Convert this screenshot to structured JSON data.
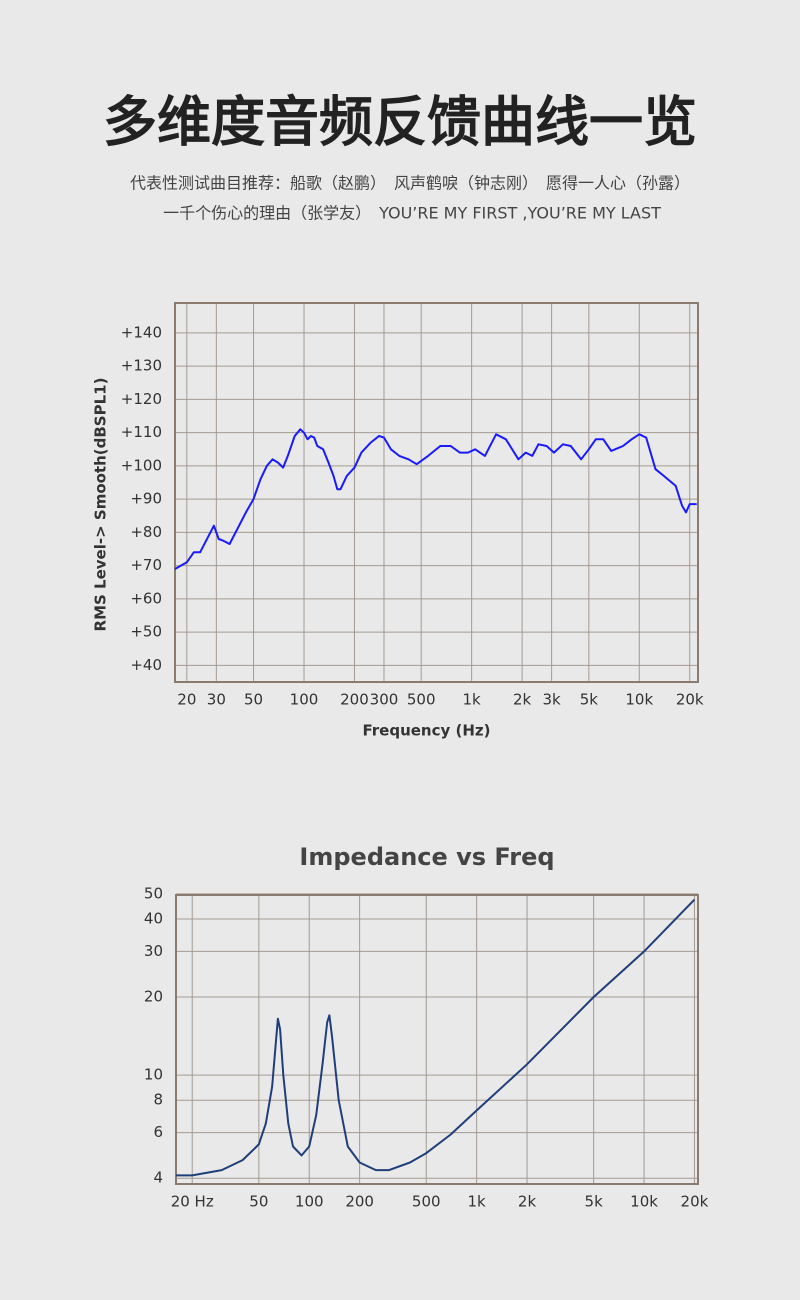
{
  "header": {
    "title": "多维度音频反馈曲线一览",
    "lines": [
      "代表性测试曲目推荐：船歌（赵鹏）　风声鹤唳（钟志刚）　愿得一人心（孙露）",
      "一千个伤心的理由（张学友）　YOU’RE MY FIRST ,YOU’RE MY LAST"
    ]
  },
  "chart_data": [
    {
      "type": "line",
      "xlabel": "Frequency (Hz)",
      "ylabel": "RMS Level-> Smooth(dBSPL1)",
      "xscale": "log",
      "yscale": "linear",
      "grid": true,
      "color": "#1a1aff",
      "xlim": [
        17,
        22400
      ],
      "ylim": [
        35,
        149
      ],
      "xticks": [
        20,
        30,
        50,
        100,
        200,
        300,
        500,
        {
          "value": 1000,
          "label": "1k"
        },
        {
          "value": 2000,
          "label": "2k"
        },
        {
          "value": 3000,
          "label": "3k"
        },
        {
          "value": 5000,
          "label": "5k"
        },
        {
          "value": 10000,
          "label": "10k"
        },
        {
          "value": 20000,
          "label": "20k"
        }
      ],
      "yticks": [
        {
          "value": 40,
          "label": "+40"
        },
        {
          "value": 50,
          "label": "+50"
        },
        {
          "value": 60,
          "label": "+60"
        },
        {
          "value": 70,
          "label": "+70"
        },
        {
          "value": 80,
          "label": "+80"
        },
        {
          "value": 90,
          "label": "+90"
        },
        {
          "value": 100,
          "label": "+100"
        },
        {
          "value": 110,
          "label": "+110"
        },
        {
          "value": 120,
          "label": "+120"
        },
        {
          "value": 130,
          "label": "+130"
        },
        {
          "value": 140,
          "label": "+140"
        }
      ],
      "x": [
        17,
        20,
        22,
        24,
        27,
        29,
        31,
        33,
        36,
        40,
        45,
        50,
        55,
        60,
        65,
        70,
        75,
        80,
        88,
        95,
        100,
        105,
        110,
        115,
        120,
        130,
        140,
        150,
        158,
        165,
        180,
        200,
        220,
        250,
        280,
        300,
        330,
        370,
        420,
        470,
        550,
        650,
        750,
        850,
        950,
        1050,
        1200,
        1400,
        1600,
        1900,
        2100,
        2300,
        2500,
        2800,
        3100,
        3500,
        3900,
        4500,
        5000,
        5500,
        6100,
        6800,
        8000,
        9000,
        10000,
        11000,
        12500,
        14000,
        16500,
        18000,
        19000,
        20000,
        22000
      ],
      "values": [
        69,
        71,
        74,
        74,
        79,
        82,
        78,
        77.5,
        76.5,
        81,
        86,
        90,
        96,
        100,
        102,
        101,
        99.5,
        103,
        109,
        111,
        110,
        108,
        109,
        108.5,
        106,
        105,
        101,
        97,
        93,
        93,
        97,
        99.5,
        104,
        107,
        109,
        108.5,
        105,
        103,
        102,
        100.5,
        103,
        106,
        106,
        104,
        104,
        105,
        103,
        109.5,
        108,
        102,
        104,
        103,
        106.5,
        106,
        104,
        106.5,
        106,
        102,
        105,
        108,
        108,
        104.5,
        106,
        108,
        109.5,
        108.5,
        99,
        97,
        94,
        88,
        86,
        88.5,
        88.5
      ]
    },
    {
      "type": "line",
      "title": "Impedance vs Freq",
      "xscale": "log",
      "yscale": "log",
      "grid": true,
      "color": "#1f3f7a",
      "xlim": [
        16,
        21000
      ],
      "ylim": [
        3.8,
        49.5
      ],
      "xticks": [
        {
          "value": 20,
          "label": "20 Hz"
        },
        50,
        100,
        200,
        500,
        {
          "value": 1000,
          "label": "1k"
        },
        {
          "value": 2000,
          "label": "2k"
        },
        {
          "value": 5000,
          "label": "5k"
        },
        {
          "value": 10000,
          "label": "10k"
        },
        {
          "value": 20000,
          "label": "20k"
        }
      ],
      "yticks": [
        4,
        6,
        8,
        10,
        20,
        30,
        40,
        50
      ],
      "x": [
        16,
        20,
        30,
        40,
        50,
        55,
        60,
        63,
        65,
        67,
        70,
        75,
        80,
        90,
        100,
        110,
        120,
        128,
        132,
        137,
        150,
        170,
        200,
        250,
        300,
        400,
        500,
        700,
        1000,
        2000,
        5000,
        10000,
        20000
      ],
      "values": [
        4.1,
        4.1,
        4.3,
        4.7,
        5.4,
        6.5,
        9,
        13,
        16.5,
        15,
        10,
        6.5,
        5.3,
        4.9,
        5.3,
        7,
        11,
        16,
        17,
        14,
        8,
        5.3,
        4.6,
        4.3,
        4.3,
        4.6,
        5.0,
        5.9,
        7.3,
        11,
        20,
        30,
        47.5
      ]
    }
  ]
}
